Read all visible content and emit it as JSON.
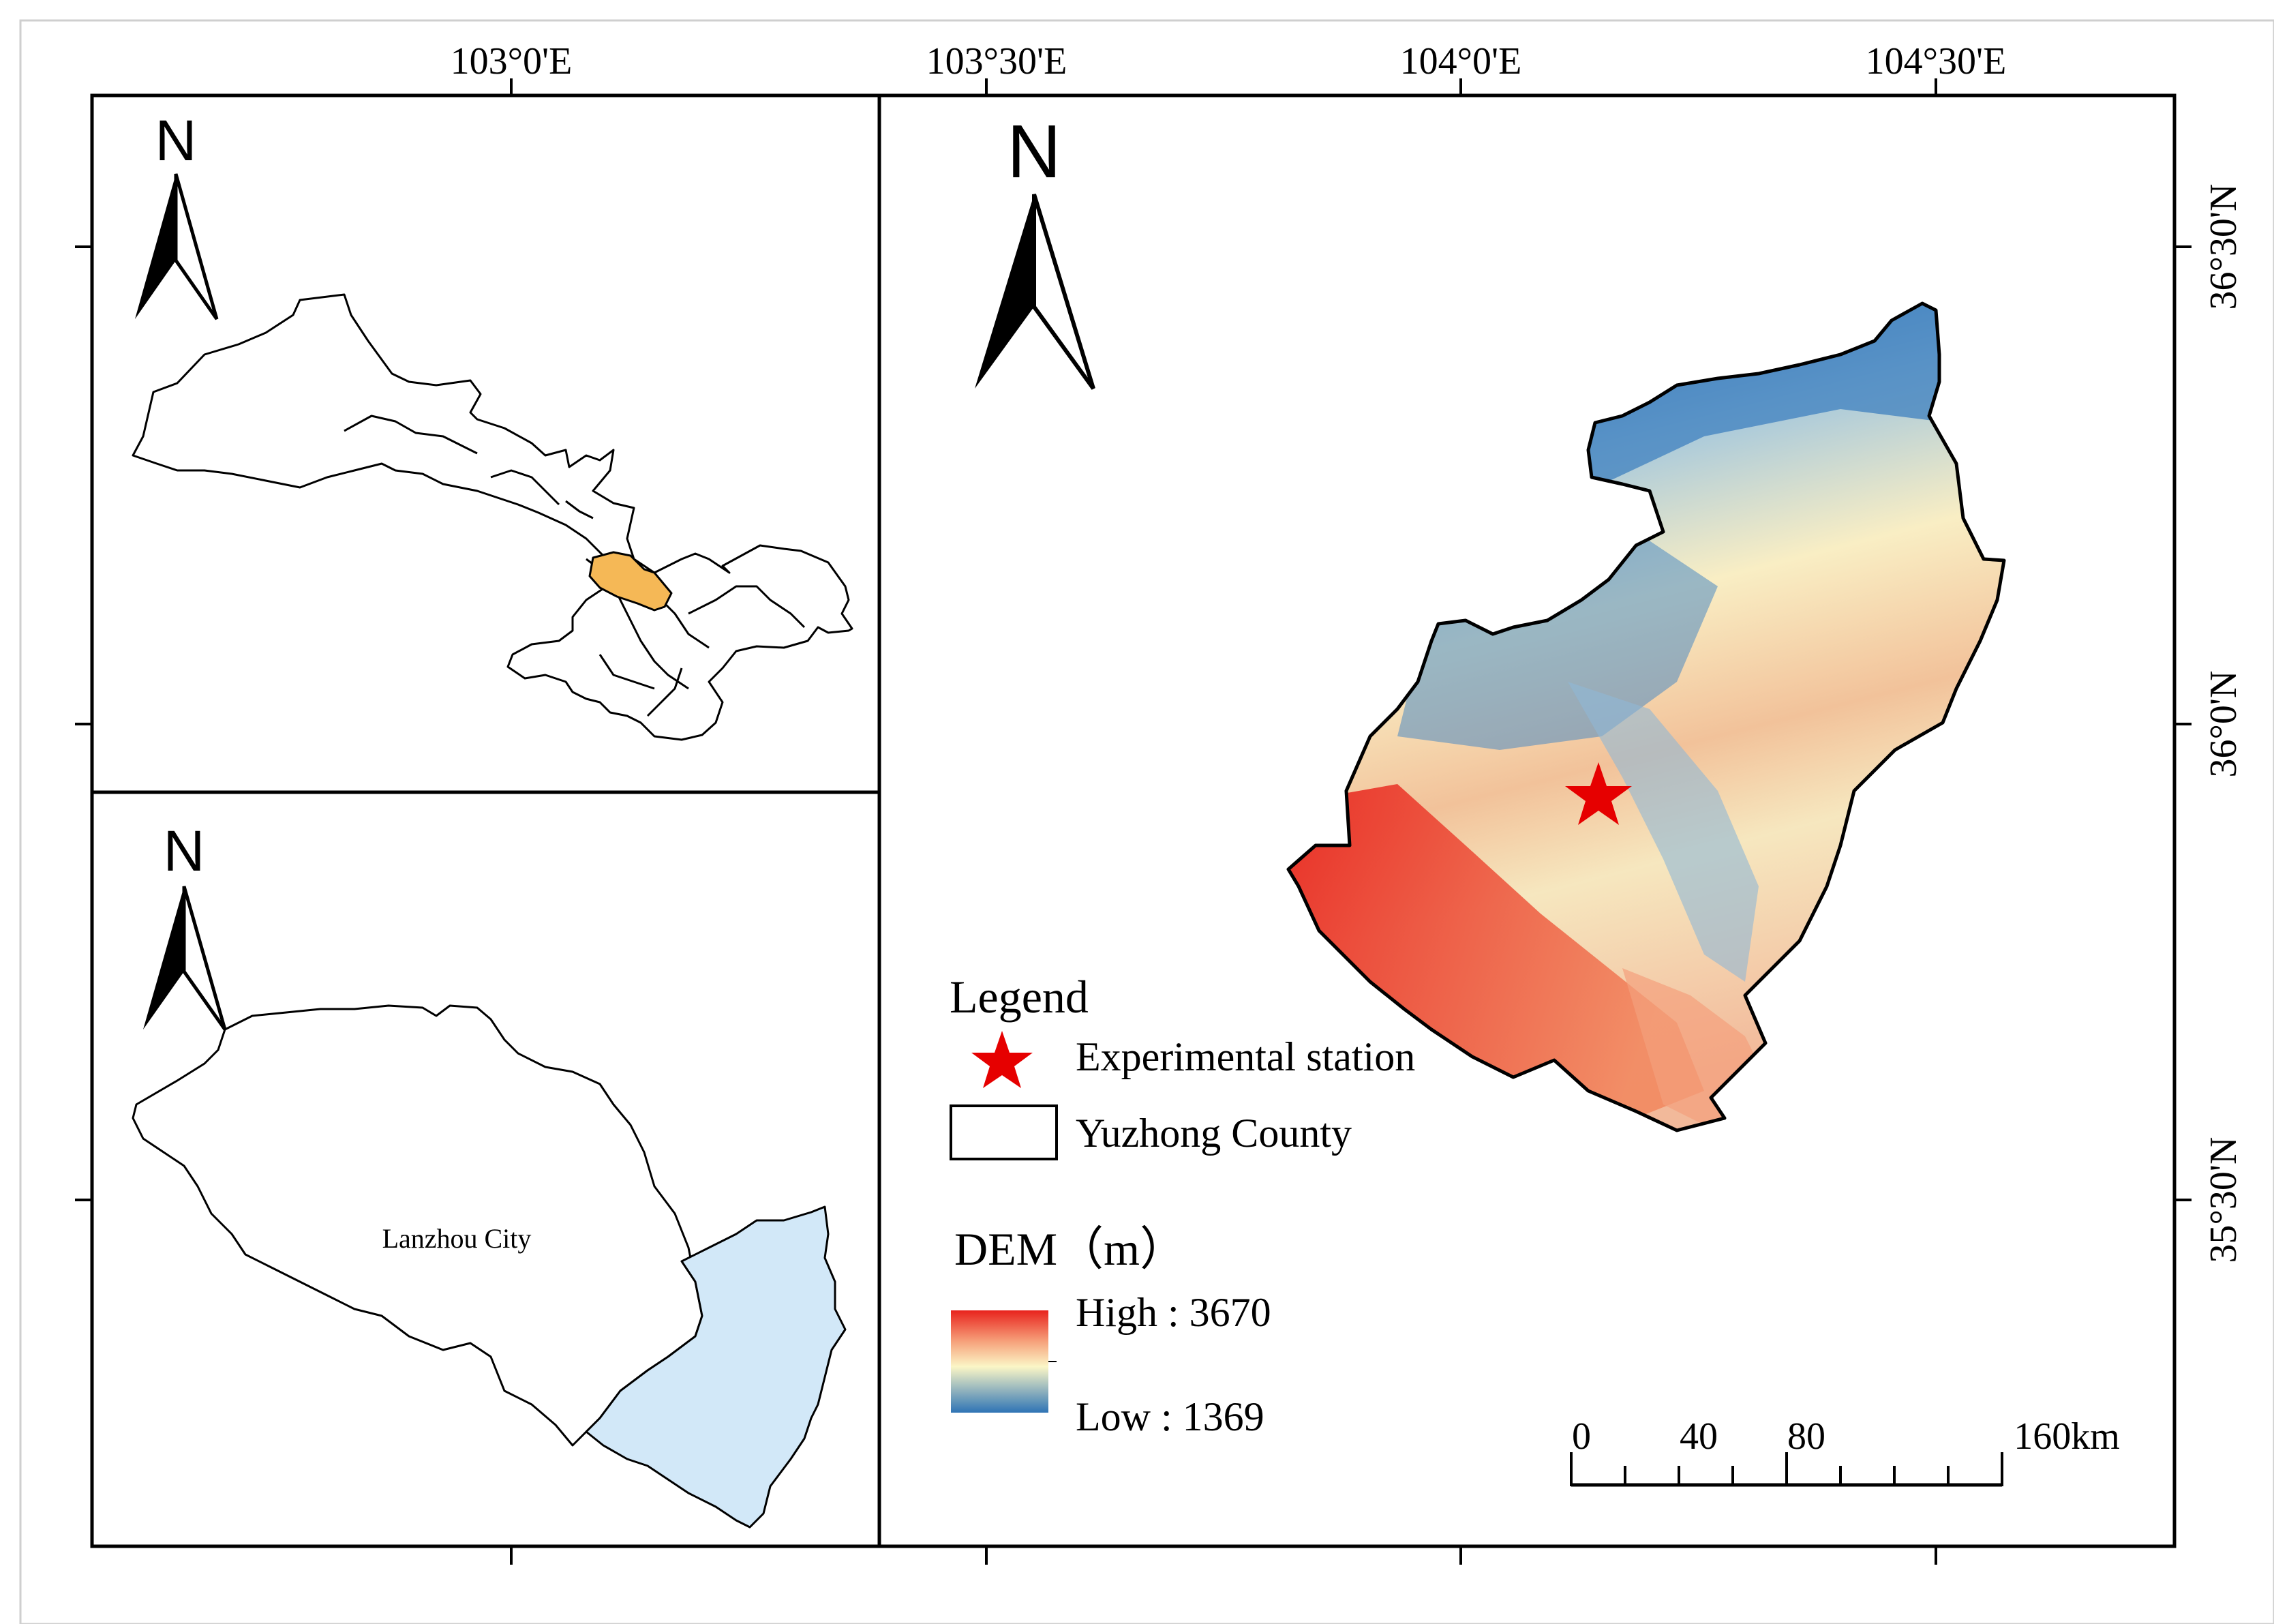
{
  "top_axis_labels": [
    "103°0'E",
    "103°30'E",
    "104°0'E",
    "104°30'E"
  ],
  "right_axis_labels": [
    "36°30'N",
    "36°0'N",
    "35°30'N"
  ],
  "north_arrow_letter": "N",
  "inset_city_label": "Lanzhou City",
  "legend": {
    "title": "Legend",
    "station_label": "Experimental station",
    "county_label": "Yuzhong County",
    "dem_title": "DEM（m）",
    "dem_high": "High : 3670",
    "dem_low": "Low : 1369"
  },
  "scale_bar": {
    "labels": [
      "0",
      "40",
      "80",
      "160km"
    ]
  },
  "colors": {
    "dem_high": "#e8231d",
    "dem_mid_high": "#f6a07a",
    "dem_mid": "#fbf6c6",
    "dem_low": "#2e74b5",
    "province_highlight": "#f5b856",
    "county_fill_inset": "#d2e8f8",
    "star": "#e60000"
  }
}
